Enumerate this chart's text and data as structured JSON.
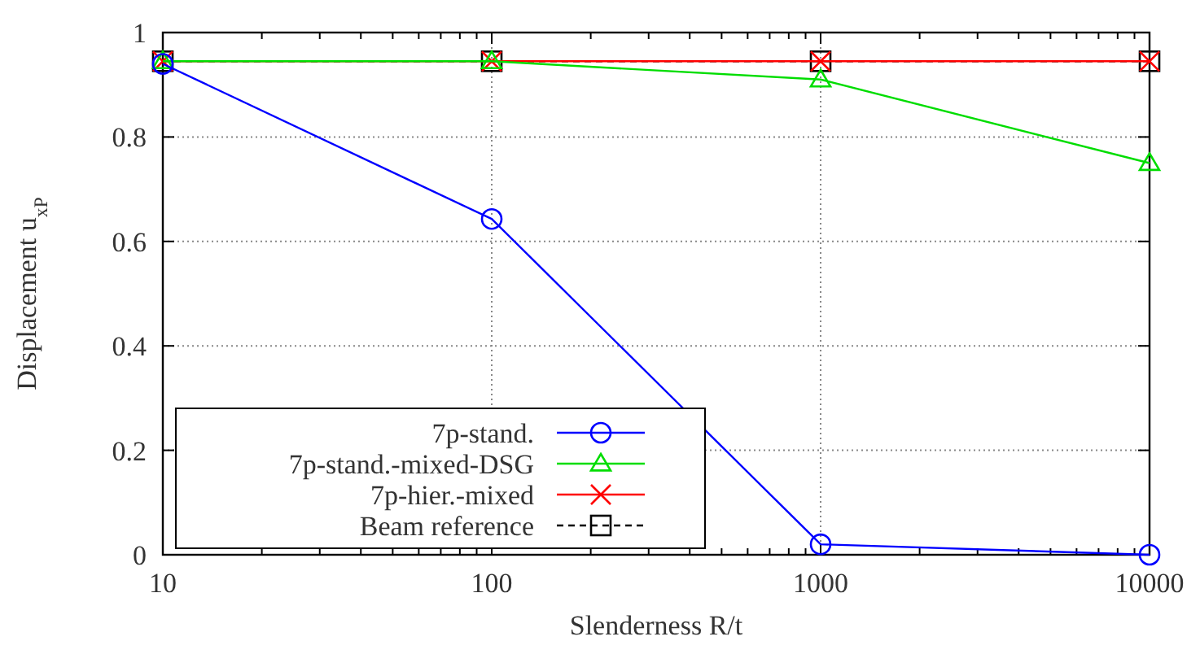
{
  "chart_data": {
    "type": "line",
    "xlabel": "Slenderness R/t",
    "ylabel": "Displacement u$_{xP}$",
    "x": [
      10,
      100,
      1000,
      10000
    ],
    "log": "x",
    "xlim": [
      10,
      10000
    ],
    "xticks": [
      10,
      100,
      1000,
      10000
    ],
    "ylim": [
      0,
      1
    ],
    "yticks": [
      0,
      {
        "value": 0.2,
        "label": "0.2"
      },
      {
        "value": 0.4,
        "label": "0.4"
      },
      {
        "value": 0.6,
        "label": "0.6"
      },
      {
        "value": 0.8,
        "label": "0.8"
      },
      1
    ],
    "grid": true,
    "legend": "bottom left",
    "series": [
      {
        "name": "7p-stand.",
        "color": "#0000ff",
        "values": [
          0.94,
          0.643,
          0.02,
          0
        ],
        "marker": "circle",
        "line_style": "solid"
      },
      {
        "name": "7p-stand.-mixed-DSG",
        "color": "#00dd00",
        "values": [
          0.945,
          0.945,
          0.91,
          0.75
        ],
        "marker": "triangle",
        "line_style": "solid"
      },
      {
        "name": "7p-hier.-mixed",
        "color": "#ff0000",
        "values": [
          0.945,
          0.945,
          0.945,
          0.945
        ],
        "marker": "cross",
        "line_style": "solid"
      },
      {
        "name": "Beam reference",
        "color": "#000000",
        "values": [
          0.945,
          0.945,
          0.945,
          0.945
        ],
        "marker": "square",
        "line_style": "dashed"
      }
    ]
  }
}
